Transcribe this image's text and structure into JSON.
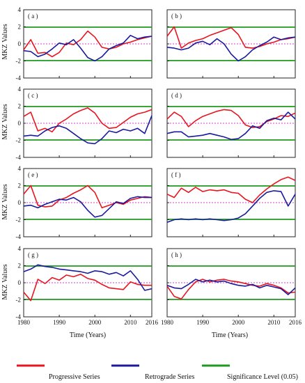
{
  "figure": {
    "y_axis_label": "MKZ Values",
    "x_axis_label": "Time (Years)",
    "legend": {
      "progressive": "Progressive Series",
      "retrograde": "Retrograde Series",
      "significance": "Significance Level (0.05)"
    }
  },
  "colors": {
    "progressive": "#e8141e",
    "retrograde": "#1a1a9e",
    "significance": "#1e9a1e",
    "zero_line": "#d23cd2"
  },
  "chart_data": [
    {
      "type": "line",
      "label": "( a )",
      "x_range": [
        1980,
        2016
      ],
      "ylim": [
        -4,
        4
      ],
      "x_ticks": [],
      "y_ticks": [
        "-4",
        "-2",
        "0",
        "2",
        "4"
      ],
      "significance_levels": [
        -1.96,
        1.96
      ],
      "series": [
        {
          "name": "Progressive Series",
          "x": [
            1980,
            1982,
            1984,
            1986,
            1988,
            1990,
            1992,
            1994,
            1996,
            1998,
            2000,
            2002,
            2004,
            2006,
            2008,
            2010,
            2012,
            2014,
            2016
          ],
          "values": [
            -0.7,
            0.5,
            -1.1,
            -1.0,
            -1.5,
            -1.0,
            0.1,
            -0.1,
            0.5,
            1.5,
            0.8,
            -0.4,
            -0.6,
            -0.4,
            0.0,
            0.2,
            0.5,
            0.7,
            0.9
          ]
        },
        {
          "name": "Retrograde Series",
          "x": [
            1980,
            1982,
            1984,
            1986,
            1988,
            1990,
            1992,
            1994,
            1996,
            1998,
            2000,
            2002,
            2004,
            2006,
            2008,
            2010,
            2012,
            2014,
            2016
          ],
          "values": [
            -0.8,
            -0.9,
            -1.5,
            -1.2,
            -0.6,
            0.1,
            -0.1,
            0.5,
            -0.5,
            -1.6,
            -2.0,
            -1.5,
            -0.6,
            -0.2,
            0.1,
            1.0,
            0.6,
            0.8,
            0.9
          ]
        }
      ]
    },
    {
      "type": "line",
      "label": "( b )",
      "x_range": [
        1980,
        2016
      ],
      "ylim": [
        -4,
        4
      ],
      "x_ticks": [],
      "y_ticks": [],
      "significance_levels": [
        -1.96,
        1.96
      ],
      "series": [
        {
          "name": "Progressive Series",
          "x": [
            1980,
            1982,
            1984,
            1986,
            1988,
            1990,
            1992,
            1994,
            1996,
            1998,
            2000,
            2002,
            2004,
            2006,
            2008,
            2010,
            2012,
            2014,
            2016
          ],
          "values": [
            0.9,
            2.0,
            -0.5,
            0.1,
            0.4,
            0.6,
            1.0,
            1.3,
            1.6,
            1.9,
            1.1,
            -0.4,
            -0.5,
            -0.3,
            0.0,
            0.2,
            0.5,
            0.6,
            0.8
          ]
        },
        {
          "name": "Retrograde Series",
          "x": [
            1980,
            1982,
            1984,
            1986,
            1988,
            1990,
            1992,
            1994,
            1996,
            1998,
            2000,
            2002,
            2004,
            2006,
            2008,
            2010,
            2012,
            2014,
            2016
          ],
          "values": [
            -0.4,
            -0.5,
            -0.7,
            -0.5,
            0.1,
            0.3,
            -0.1,
            0.6,
            0.0,
            -1.2,
            -2.0,
            -1.5,
            -0.7,
            -0.2,
            0.2,
            0.8,
            0.5,
            0.7,
            0.8
          ]
        }
      ]
    },
    {
      "type": "line",
      "label": "( c )",
      "x_range": [
        1980,
        2016
      ],
      "ylim": [
        -4,
        4
      ],
      "x_ticks": [],
      "y_ticks": [
        "-4",
        "-2",
        "0",
        "2",
        "4"
      ],
      "significance_levels": [
        -1.96,
        1.96
      ],
      "series": [
        {
          "name": "Progressive Series",
          "x": [
            1980,
            1982,
            1984,
            1986,
            1988,
            1990,
            1992,
            1994,
            1996,
            1998,
            2000,
            2002,
            2004,
            2006,
            2008,
            2010,
            2012,
            2014,
            2016
          ],
          "values": [
            0.8,
            1.3,
            -0.9,
            -0.6,
            -1.0,
            0.0,
            0.5,
            1.1,
            1.5,
            1.8,
            1.2,
            0.0,
            -0.6,
            -0.5,
            0.1,
            0.7,
            1.1,
            1.3,
            1.6
          ]
        },
        {
          "name": "Retrograde Series",
          "x": [
            1980,
            1982,
            1984,
            1986,
            1988,
            1990,
            1992,
            1994,
            1996,
            1998,
            2000,
            2002,
            2004,
            2006,
            2008,
            2010,
            2012,
            2014,
            2016
          ],
          "values": [
            -1.5,
            -1.4,
            -1.5,
            -0.9,
            -0.5,
            -0.3,
            -0.6,
            -1.2,
            -1.8,
            -2.3,
            -2.4,
            -1.8,
            -0.9,
            -1.1,
            -0.7,
            -0.9,
            -0.6,
            -1.2,
            0.9
          ]
        }
      ]
    },
    {
      "type": "line",
      "label": "( d )",
      "x_range": [
        1980,
        2016
      ],
      "ylim": [
        -4,
        4
      ],
      "x_ticks": [],
      "y_ticks": [],
      "significance_levels": [
        -1.96,
        1.96
      ],
      "series": [
        {
          "name": "Progressive Series",
          "x": [
            1980,
            1982,
            1984,
            1986,
            1988,
            1990,
            1992,
            1994,
            1996,
            1998,
            2000,
            2002,
            2004,
            2006,
            2008,
            2010,
            2012,
            2014,
            2016
          ],
          "values": [
            0.5,
            1.3,
            0.8,
            -0.4,
            0.3,
            0.8,
            1.1,
            1.4,
            1.6,
            1.5,
            0.9,
            -0.2,
            -0.5,
            -0.4,
            0.2,
            0.5,
            0.9,
            0.8,
            1.2
          ]
        },
        {
          "name": "Retrograde Series",
          "x": [
            1980,
            1982,
            1984,
            1986,
            1988,
            1990,
            1992,
            1994,
            1996,
            1998,
            2000,
            2002,
            2004,
            2006,
            2008,
            2010,
            2012,
            2014,
            2016
          ],
          "values": [
            -1.2,
            -1.0,
            -1.0,
            -1.6,
            -1.5,
            -1.4,
            -1.2,
            -1.4,
            -1.6,
            -1.9,
            -1.8,
            -1.2,
            -0.3,
            -0.6,
            0.3,
            0.6,
            0.4,
            1.3,
            0.5
          ]
        }
      ]
    },
    {
      "type": "line",
      "label": "( e )",
      "x_range": [
        1980,
        2016
      ],
      "ylim": [
        -4,
        4
      ],
      "x_ticks": [],
      "y_ticks": [
        "-4",
        "-2",
        "0",
        "2",
        "4"
      ],
      "significance_levels": [
        -1.96,
        1.96
      ],
      "series": [
        {
          "name": "Progressive Series",
          "x": [
            1980,
            1982,
            1984,
            1986,
            1988,
            1990,
            1992,
            1994,
            1996,
            1998,
            2000,
            2002,
            2004,
            2006,
            2008,
            2010,
            2012,
            2014,
            2016
          ],
          "values": [
            1.0,
            2.0,
            -0.3,
            -0.5,
            -0.4,
            0.3,
            0.6,
            1.1,
            1.5,
            2.0,
            1.2,
            -0.6,
            -0.3,
            0.0,
            -0.2,
            0.3,
            0.5,
            0.7,
            0.6
          ]
        },
        {
          "name": "Retrograde Series",
          "x": [
            1980,
            1982,
            1984,
            1986,
            1988,
            1990,
            1992,
            1994,
            1996,
            1998,
            2000,
            2002,
            2004,
            2006,
            2008,
            2010,
            2012,
            2014,
            2016
          ],
          "values": [
            -0.4,
            -0.3,
            -0.6,
            -0.2,
            0.1,
            0.4,
            0.3,
            0.6,
            0.1,
            -0.9,
            -1.7,
            -1.5,
            -0.7,
            0.1,
            -0.1,
            0.5,
            0.7,
            0.6,
            0.6
          ]
        }
      ]
    },
    {
      "type": "line",
      "label": "( f )",
      "x_range": [
        1980,
        2016
      ],
      "ylim": [
        -4,
        4
      ],
      "x_ticks": [],
      "y_ticks": [],
      "significance_levels": [
        -1.96,
        1.96
      ],
      "series": [
        {
          "name": "Progressive Series",
          "x": [
            1980,
            1982,
            1984,
            1986,
            1988,
            1990,
            1992,
            1994,
            1996,
            1998,
            2000,
            2002,
            2004,
            2006,
            2008,
            2010,
            2012,
            2014,
            2016
          ],
          "values": [
            1.0,
            0.6,
            1.7,
            1.2,
            1.8,
            1.3,
            1.5,
            1.4,
            1.5,
            1.2,
            1.1,
            0.4,
            0.0,
            0.9,
            1.6,
            2.2,
            2.7,
            3.0,
            2.6
          ]
        },
        {
          "name": "Retrograde Series",
          "x": [
            1980,
            1982,
            1984,
            1986,
            1988,
            1990,
            1992,
            1994,
            1996,
            1998,
            2000,
            2002,
            2004,
            2006,
            2008,
            2010,
            2012,
            2014,
            2016
          ],
          "values": [
            -2.3,
            -2.0,
            -1.9,
            -2.0,
            -1.9,
            -2.0,
            -1.9,
            -2.0,
            -2.1,
            -2.0,
            -1.8,
            -1.3,
            -0.4,
            0.5,
            1.2,
            1.4,
            1.3,
            -0.4,
            1.0
          ]
        }
      ]
    },
    {
      "type": "line",
      "label": "( g )",
      "x_range": [
        1980,
        2016
      ],
      "ylim": [
        -4,
        4
      ],
      "x_ticks": [
        "1980",
        "1990",
        "2000",
        "2010",
        "2016"
      ],
      "y_ticks": [
        "-4",
        "-2",
        "0",
        "2",
        "4"
      ],
      "significance_levels": [
        -1.96,
        1.96
      ],
      "series": [
        {
          "name": "Progressive Series",
          "x": [
            1980,
            1982,
            1984,
            1986,
            1988,
            1990,
            1992,
            1994,
            1996,
            1998,
            2000,
            2002,
            2004,
            2006,
            2008,
            2010,
            2012,
            2014,
            2016
          ],
          "values": [
            -1.1,
            -2.1,
            0.4,
            -0.1,
            0.6,
            0.3,
            0.9,
            0.7,
            1.0,
            0.5,
            0.3,
            -0.2,
            -0.6,
            -0.7,
            -0.8,
            0.1,
            -0.2,
            -0.3,
            -0.3
          ]
        },
        {
          "name": "Retrograde Series",
          "x": [
            1980,
            1982,
            1984,
            1986,
            1988,
            1990,
            1992,
            1994,
            1996,
            1998,
            2000,
            2002,
            2004,
            2006,
            2008,
            2010,
            2012,
            2014,
            2016
          ],
          "values": [
            1.3,
            1.6,
            2.1,
            1.9,
            1.8,
            1.6,
            1.5,
            1.4,
            1.3,
            1.1,
            1.4,
            1.3,
            1.0,
            1.2,
            0.8,
            1.4,
            0.4,
            -0.9,
            -0.7
          ]
        }
      ]
    },
    {
      "type": "line",
      "label": "( h )",
      "x_range": [
        1980,
        2016
      ],
      "ylim": [
        -4,
        4
      ],
      "x_ticks": [
        "1980",
        "1990",
        "2000",
        "2010",
        "2016"
      ],
      "y_ticks": [],
      "significance_levels": [
        -1.96,
        1.96
      ],
      "series": [
        {
          "name": "Progressive Series",
          "x": [
            1980,
            1982,
            1984,
            1986,
            1988,
            1990,
            1992,
            1994,
            1996,
            1998,
            2000,
            2002,
            2004,
            2006,
            2008,
            2010,
            2012,
            2014,
            2016
          ],
          "values": [
            -0.4,
            -1.6,
            -1.9,
            -0.8,
            0.1,
            0.4,
            0.1,
            0.3,
            0.4,
            0.2,
            0.1,
            -0.1,
            -0.3,
            -0.4,
            -0.1,
            -0.3,
            -0.6,
            -1.2,
            -1.1
          ]
        },
        {
          "name": "Retrograde Series",
          "x": [
            1980,
            1982,
            1984,
            1986,
            1988,
            1990,
            1992,
            1994,
            1996,
            1998,
            2000,
            2002,
            2004,
            2006,
            2008,
            2010,
            2012,
            2014,
            2016
          ],
          "values": [
            -0.3,
            -0.6,
            -0.7,
            -0.2,
            0.4,
            0.1,
            0.3,
            0.1,
            0.2,
            -0.1,
            -0.3,
            -0.4,
            -0.2,
            -0.6,
            -0.3,
            -0.5,
            -0.7,
            -1.4,
            -0.6
          ]
        }
      ]
    }
  ]
}
